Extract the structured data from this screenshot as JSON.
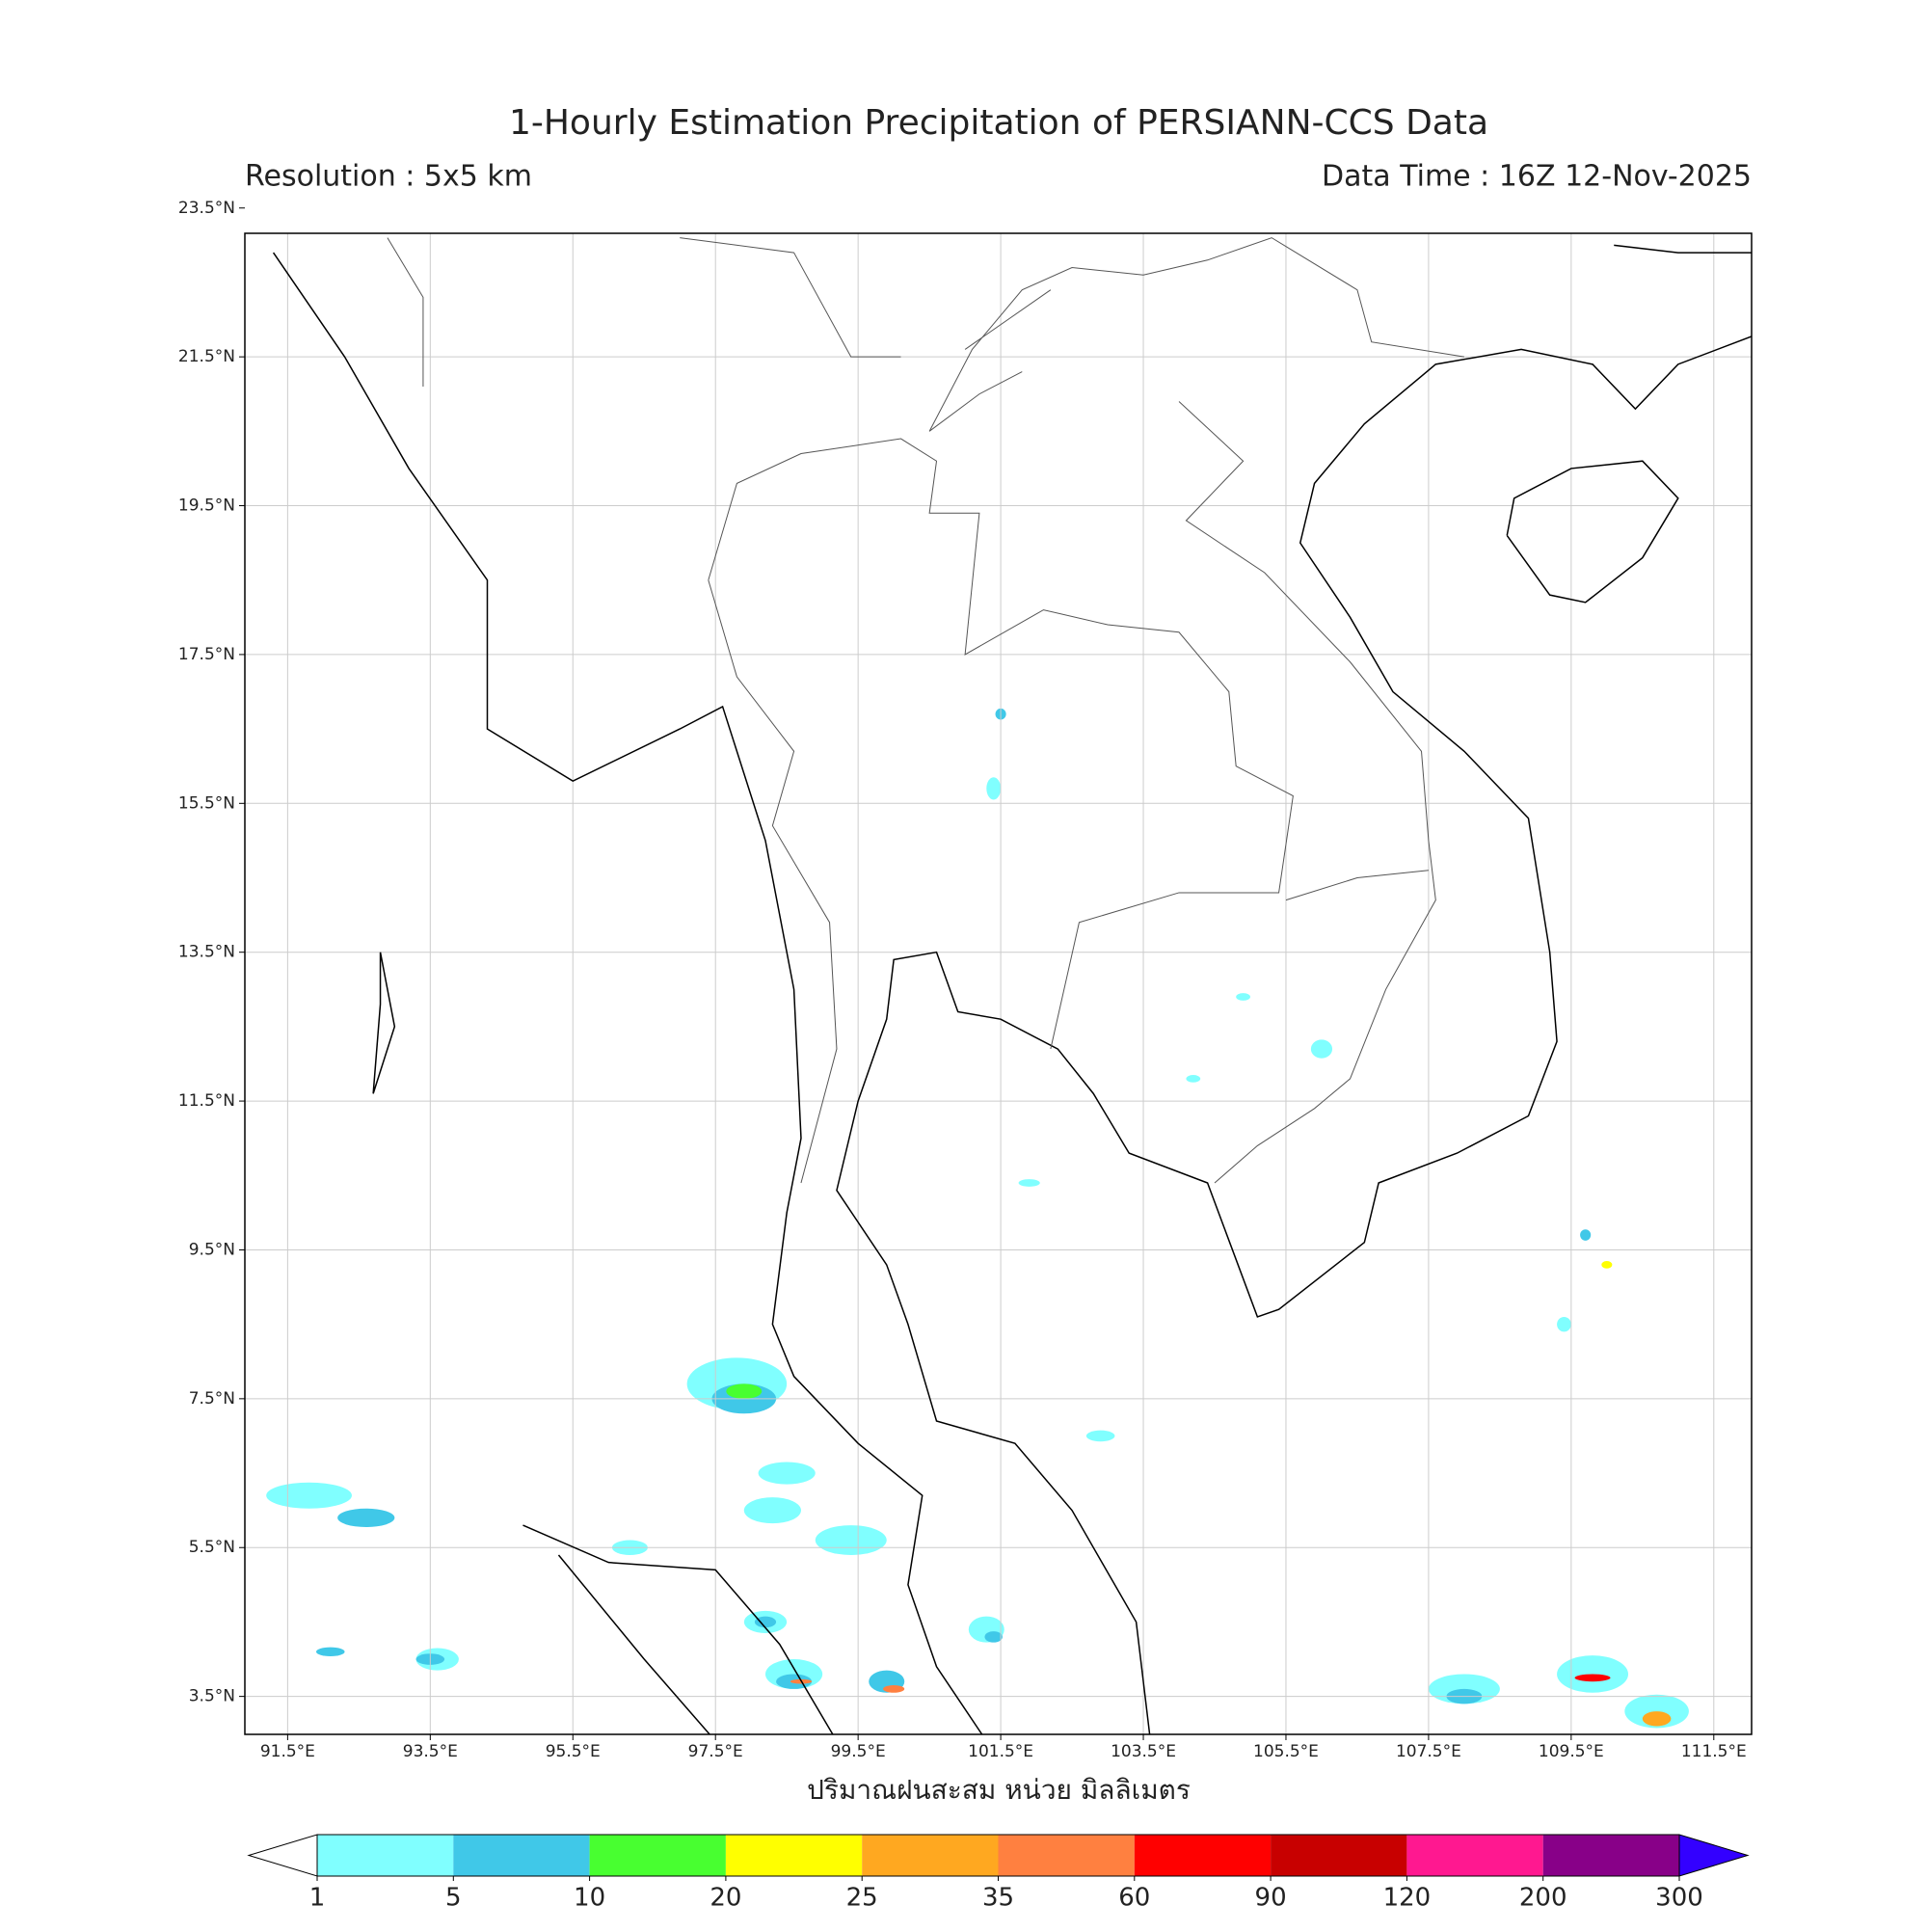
{
  "header": {
    "title": "1-Hourly Estimation Precipitation of PERSIANN-CCS Data",
    "resolution": "Resolution : 5x5 km",
    "data_time": "Data Time : 16Z 12-Nov-2025"
  },
  "map": {
    "xlim": [
      90.9,
      112.03
    ],
    "ylim": [
      2.99,
      23.16
    ],
    "xticks": [
      {
        "value": 91.5,
        "label": "91.5°E"
      },
      {
        "value": 93.5,
        "label": "93.5°E"
      },
      {
        "value": 95.5,
        "label": "95.5°E"
      },
      {
        "value": 97.5,
        "label": "97.5°E"
      },
      {
        "value": 99.5,
        "label": "99.5°E"
      },
      {
        "value": 101.5,
        "label": "101.5°E"
      },
      {
        "value": 103.5,
        "label": "103.5°E"
      },
      {
        "value": 105.5,
        "label": "105.5°E"
      },
      {
        "value": 107.5,
        "label": "107.5°E"
      },
      {
        "value": 109.5,
        "label": "109.5°E"
      },
      {
        "value": 111.5,
        "label": "111.5°E"
      }
    ],
    "yticks": [
      {
        "value": 3.5,
        "label": "3.5°N"
      },
      {
        "value": 5.5,
        "label": "5.5°N"
      },
      {
        "value": 7.5,
        "label": "7.5°N"
      },
      {
        "value": 9.5,
        "label": "9.5°N"
      },
      {
        "value": 11.5,
        "label": "11.5°N"
      },
      {
        "value": 13.5,
        "label": "13.5°N"
      },
      {
        "value": 15.5,
        "label": "15.5°N"
      },
      {
        "value": 17.5,
        "label": "17.5°N"
      },
      {
        "value": 19.5,
        "label": "19.5°N"
      },
      {
        "value": 21.5,
        "label": "21.5°N"
      },
      {
        "value": 23.5,
        "label": "23.5°N"
      }
    ],
    "grid": true,
    "xlabel": "ปริมาณฝนสะสม หน่วย มิลลิเมตร"
  },
  "colorbar": {
    "levels": [
      1,
      5,
      10,
      20,
      25,
      35,
      60,
      90,
      120,
      200,
      300
    ],
    "colors": [
      "#80ffff",
      "#40c8e8",
      "#48ff30",
      "#ffff00",
      "#ffa820",
      "#ff8040",
      "#ff0000",
      "#c80000",
      "#ff1890",
      "#880088"
    ],
    "under_color": "#ffffff",
    "over_color": "#3300ff"
  }
}
